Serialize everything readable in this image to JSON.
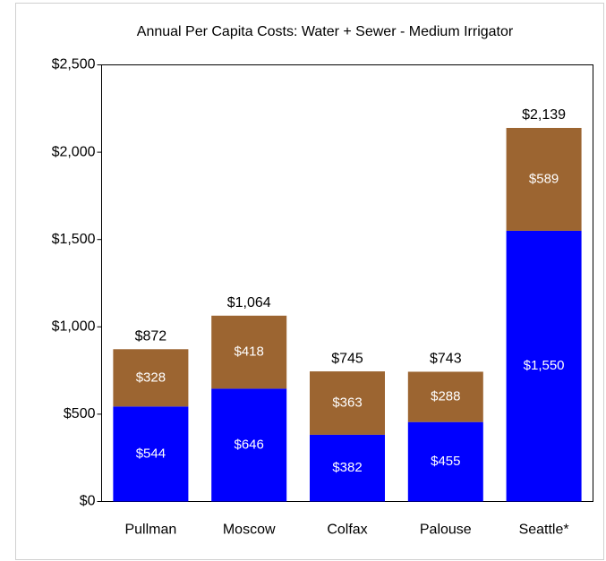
{
  "chart_data": {
    "type": "stacked_bar",
    "title": "Annual Per Capita Costs: Water + Sewer - Medium Irrigator",
    "categories": [
      "Pullman",
      "Moscow",
      "Colfax",
      "Palouse",
      "Seattle*"
    ],
    "series": [
      {
        "color": "#0000ff",
        "values": [
          544,
          646,
          382,
          455,
          1550
        ],
        "value_labels": [
          "$544",
          "$646",
          "$382",
          "$455",
          "$1,550"
        ]
      },
      {
        "color": "#9c6531",
        "values": [
          328,
          418,
          363,
          288,
          589
        ],
        "value_labels": [
          "$328",
          "$418",
          "$363",
          "$288",
          "$589"
        ]
      }
    ],
    "totals": [
      872,
      1064,
      745,
      743,
      2139
    ],
    "total_labels": [
      "$872",
      "$1,064",
      "$745",
      "$743",
      "$2,139"
    ],
    "ylim": [
      0,
      2500
    ],
    "yticks": [
      {
        "value": 0,
        "label": "$0"
      },
      {
        "value": 500,
        "label": "$500"
      },
      {
        "value": 1000,
        "label": "$1,000"
      },
      {
        "value": 1500,
        "label": "$1,500"
      },
      {
        "value": 2000,
        "label": "$2,000"
      },
      {
        "value": 2500,
        "label": "$2,500"
      }
    ]
  }
}
